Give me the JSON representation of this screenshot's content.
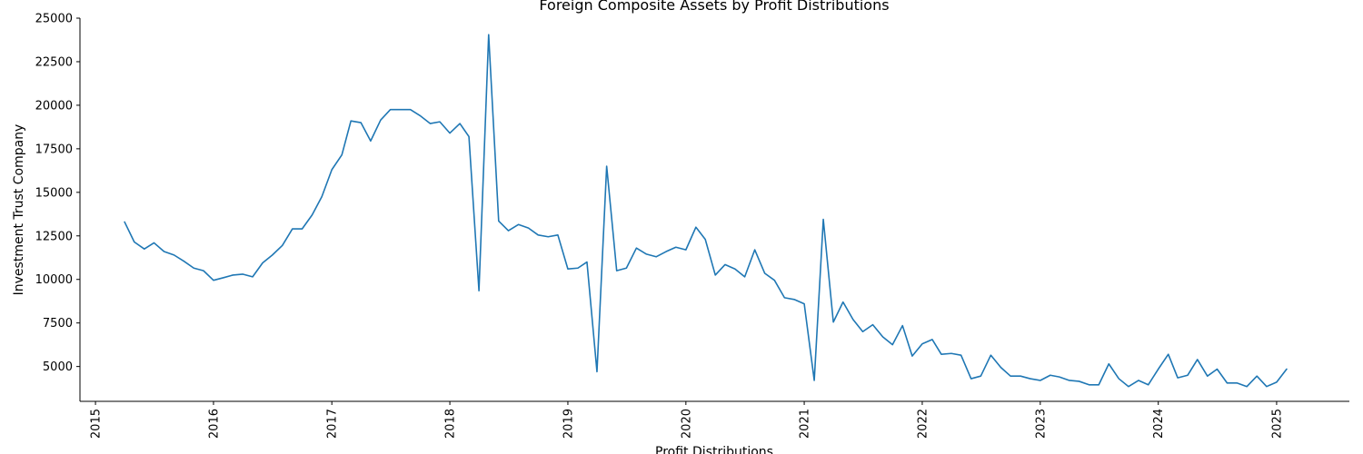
{
  "chart_data": {
    "type": "line",
    "title": "Foreign Composite Assets by Profit Distributions",
    "xlabel": "Profit Distributions",
    "ylabel": "Investment Trust Company",
    "xlim": [
      "2014-11-14",
      "2025-08-14"
    ],
    "ylim": [
      3000,
      25000
    ],
    "grid": false,
    "legend": "none",
    "line_color": "#1f77b4",
    "xticks": [
      "2015",
      "2016",
      "2017",
      "2018",
      "2019",
      "2020",
      "2021",
      "2022",
      "2023",
      "2024",
      "2025"
    ],
    "yticks": [
      5000,
      7500,
      10000,
      12500,
      15000,
      17500,
      20000,
      22500,
      25000
    ],
    "series": [
      {
        "x": [
          "2015-04",
          "2015-05",
          "2015-06",
          "2015-07",
          "2015-08",
          "2015-09",
          "2015-10",
          "2015-11",
          "2015-12",
          "2016-01",
          "2016-02",
          "2016-03",
          "2016-04",
          "2016-05",
          "2016-06",
          "2016-07",
          "2016-08",
          "2016-09",
          "2016-10",
          "2016-11",
          "2016-12",
          "2017-01",
          "2017-02",
          "2017-03",
          "2017-04",
          "2017-05",
          "2017-06",
          "2017-07",
          "2017-08",
          "2017-09",
          "2017-10",
          "2017-11",
          "2017-12",
          "2018-01",
          "2018-02",
          "2018-03",
          "2018-04",
          "2018-05",
          "2018-06",
          "2018-07",
          "2018-08",
          "2018-09",
          "2018-10",
          "2018-11",
          "2018-12",
          "2019-01",
          "2019-02",
          "2019-03",
          "2019-04",
          "2019-05",
          "2019-06",
          "2019-07",
          "2019-08",
          "2019-09",
          "2019-10",
          "2019-11",
          "2019-12",
          "2020-01",
          "2020-02",
          "2020-03",
          "2020-04",
          "2020-05",
          "2020-06",
          "2020-07",
          "2020-08",
          "2020-09",
          "2020-10",
          "2020-11",
          "2020-12",
          "2021-01",
          "2021-02",
          "2021-03",
          "2021-04",
          "2021-05",
          "2021-06",
          "2021-07",
          "2021-08",
          "2021-09",
          "2021-10",
          "2021-11",
          "2021-12",
          "2022-01",
          "2022-02",
          "2022-03",
          "2022-04",
          "2022-05",
          "2022-06",
          "2022-07",
          "2022-08",
          "2022-09",
          "2022-10",
          "2022-11",
          "2022-12",
          "2023-01",
          "2023-02",
          "2023-03",
          "2023-04",
          "2023-05",
          "2023-06",
          "2023-07",
          "2023-08",
          "2023-09",
          "2023-10",
          "2023-11",
          "2023-12",
          "2024-01",
          "2024-02",
          "2024-03",
          "2024-04",
          "2024-05",
          "2024-06",
          "2024-07",
          "2024-08",
          "2024-09",
          "2024-10",
          "2024-11",
          "2024-12",
          "2025-01",
          "2025-02"
        ],
        "y": [
          13300,
          12150,
          11750,
          12100,
          11600,
          11400,
          11050,
          10650,
          10500,
          9950,
          10100,
          10250,
          10300,
          10150,
          10950,
          11400,
          11950,
          12900,
          12900,
          13700,
          14750,
          16300,
          17150,
          19100,
          19000,
          17950,
          19150,
          19750,
          19750,
          19750,
          19400,
          18950,
          19050,
          18400,
          18950,
          18200,
          9350,
          24050,
          13350,
          12800,
          13150,
          12950,
          12550,
          12450,
          12550,
          10600,
          10650,
          11000,
          4700,
          16500,
          10500,
          10650,
          11800,
          11450,
          11300,
          11600,
          11850,
          11700,
          13000,
          12300,
          10250,
          10850,
          10600,
          10150,
          11700,
          10350,
          9950,
          8950,
          8850,
          8600,
          4200,
          13450,
          7550,
          8700,
          7700,
          7000,
          7400,
          6700,
          6250,
          7350,
          5600,
          6300,
          6550,
          5700,
          5750,
          5650,
          4300,
          4450,
          5650,
          4950,
          4450,
          4450,
          4300,
          4200,
          4500,
          4400,
          4200,
          4150,
          3950,
          3950,
          5150,
          4300,
          3850,
          4200,
          3950,
          4850,
          5700,
          4350,
          4500,
          5400,
          4450,
          4850,
          4050,
          4050,
          3850,
          4450,
          3850,
          4100,
          4850
        ]
      }
    ]
  }
}
